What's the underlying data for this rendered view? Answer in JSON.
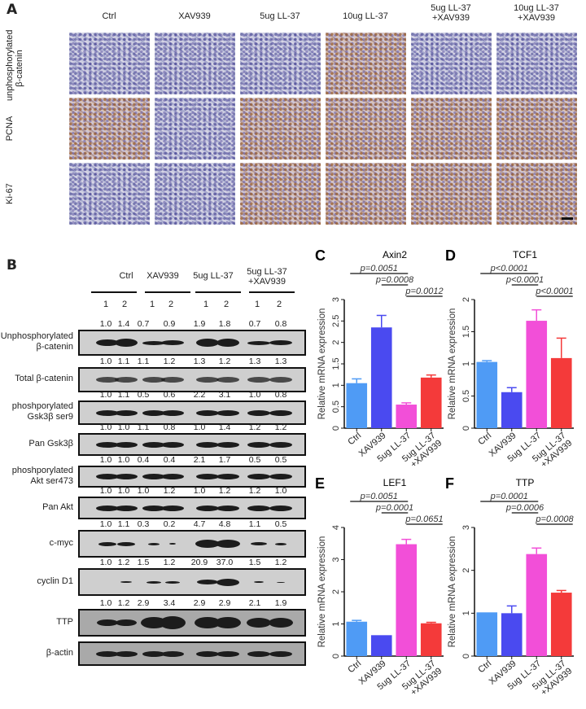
{
  "panel_a": {
    "label": "A",
    "columns": [
      "Ctrl",
      "XAV939",
      "5ug LL-37",
      "10ug LL-37",
      "5ug LL-37\n+XAV939",
      "10ug LL-37\n+XAV939"
    ],
    "rows": [
      "unphosphorylated\nβ-catenin",
      "PCNA",
      "Ki-67"
    ]
  },
  "panel_b": {
    "label": "B",
    "groups": [
      "Ctrl",
      "XAV939",
      "5ug LL-37",
      "5ug LL-37\n+XAV939"
    ],
    "lanes": [
      "1",
      "2",
      "1",
      "2",
      "1",
      "2",
      "1",
      "2"
    ],
    "blots": [
      {
        "name": "Unphosphorylated\nβ-catenin",
        "values": [
          "1.0",
          "1.4",
          "0.7",
          "0.9",
          "1.9",
          "1.8",
          "0.7",
          "0.8"
        ]
      },
      {
        "name": "Total β-catenin",
        "values": [
          "1.0",
          "1.1",
          "1.1",
          "1.2",
          "1.3",
          "1.2",
          "1.3",
          "1.3"
        ]
      },
      {
        "name": "phoshporylated\nGsk3β ser9",
        "values": [
          "1.0",
          "1.1",
          "0.5",
          "0.6",
          "2.2",
          "3.1",
          "1.0",
          "0.8"
        ]
      },
      {
        "name": "Pan Gsk3β",
        "values": [
          "1.0",
          "1.0",
          "1.1",
          "0.8",
          "1.0",
          "1.4",
          "1.2",
          "1.2"
        ]
      },
      {
        "name": "phoshporylated\nAkt ser473",
        "values": [
          "1.0",
          "1.0",
          "0.4",
          "0.4",
          "2.1",
          "1.7",
          "0.5",
          "0.5"
        ]
      },
      {
        "name": "Pan Akt",
        "values": [
          "1.0",
          "1.0",
          "1.0",
          "1.2",
          "1.0",
          "1.2",
          "1.2",
          "1.0"
        ]
      },
      {
        "name": "c-myc",
        "values": [
          "1.0",
          "1.1",
          "0.3",
          "0.2",
          "4.7",
          "4.8",
          "1.1",
          "0.5"
        ]
      },
      {
        "name": "cyclin D1",
        "values": [
          "1.0",
          "1.2",
          "1.5",
          "1.2",
          "20.9",
          "37.0",
          "1.5",
          "1.2"
        ]
      },
      {
        "name": "TTP",
        "values": [
          "1.0",
          "1.2",
          "2.9",
          "3.4",
          "2.9",
          "2.9",
          "2.1",
          "1.9"
        ]
      },
      {
        "name": "β-actin",
        "values": []
      }
    ]
  },
  "chart_data": [
    {
      "panel": "C",
      "type": "bar",
      "title": "Axin2",
      "ylabel": "Relative mRNA expression",
      "xlabel": "",
      "categories": [
        "Ctrl",
        "XAV939",
        "5ug LL-37",
        "5ug LL-37\n+XAV939"
      ],
      "values": [
        1.05,
        2.35,
        0.55,
        1.18
      ],
      "errors": [
        0.1,
        0.28,
        0.04,
        0.06
      ],
      "ylim": [
        0,
        3
      ],
      "yticks": [
        "0",
        "0.5",
        "1",
        "1.5",
        "2",
        "2.5",
        "3"
      ],
      "comparisons": [
        {
          "from": 0,
          "to": 2,
          "label": "p=0.0051"
        },
        {
          "from": 1,
          "to": 2,
          "label": "p=0.0008"
        },
        {
          "from": 2,
          "to": 3,
          "label": "p=0.0012"
        }
      ]
    },
    {
      "panel": "D",
      "type": "bar",
      "title": "TCF1",
      "ylabel": "Relative mRNA expression",
      "xlabel": "",
      "categories": [
        "Ctrl",
        "XAV939",
        "5ug LL-37",
        "5ug LL-37\n+XAV939"
      ],
      "values": [
        1.03,
        0.56,
        1.67,
        1.09
      ],
      "errors": [
        0.02,
        0.07,
        0.17,
        0.31
      ],
      "ylim": [
        0,
        2
      ],
      "yticks": [
        "0",
        "0.5",
        "1",
        "1.5",
        "2"
      ],
      "comparisons": [
        {
          "from": 0,
          "to": 2,
          "label": "p<0.0001"
        },
        {
          "from": 1,
          "to": 2,
          "label": "p<0.0001"
        },
        {
          "from": 2,
          "to": 3,
          "label": "p<0.0001"
        }
      ]
    },
    {
      "panel": "E",
      "type": "bar",
      "title": "LEF1",
      "ylabel": "Relative mRNA expression",
      "xlabel": "",
      "categories": [
        "Ctrl",
        "XAV939",
        "5ug LL-37",
        "5ug LL-37\n+XAV939"
      ],
      "values": [
        1.07,
        0.65,
        3.48,
        1.02
      ],
      "errors": [
        0.04,
        0.0,
        0.15,
        0.03
      ],
      "ylim": [
        0,
        4
      ],
      "yticks": [
        "0",
        "1",
        "2",
        "3",
        "4"
      ],
      "comparisons": [
        {
          "from": 0,
          "to": 2,
          "label": "p=0.0051"
        },
        {
          "from": 1,
          "to": 2,
          "label": "p=0.0001"
        },
        {
          "from": 2,
          "to": 3,
          "label": "p=0.0651"
        }
      ]
    },
    {
      "panel": "F",
      "type": "bar",
      "title": "TTP",
      "ylabel": "Relative mRNA expression",
      "xlabel": "",
      "categories": [
        "Ctrl",
        "XAV939",
        "5ug LL-37",
        "5ug LL-37\n+XAV939"
      ],
      "values": [
        1.02,
        1.0,
        2.38,
        1.48
      ],
      "errors": [
        0.0,
        0.17,
        0.14,
        0.05
      ],
      "ylim": [
        0,
        3
      ],
      "yticks": [
        "0",
        "1",
        "2",
        "3"
      ],
      "comparisons": [
        {
          "from": 0,
          "to": 2,
          "label": "p=0.0001"
        },
        {
          "from": 1,
          "to": 2,
          "label": "p=0.0006"
        },
        {
          "from": 2,
          "to": 3,
          "label": "p=0.0008"
        }
      ]
    }
  ],
  "colors": {
    "bars": [
      "#4f9bf5",
      "#4a4af0",
      "#f24fd8",
      "#f43a3a"
    ]
  }
}
